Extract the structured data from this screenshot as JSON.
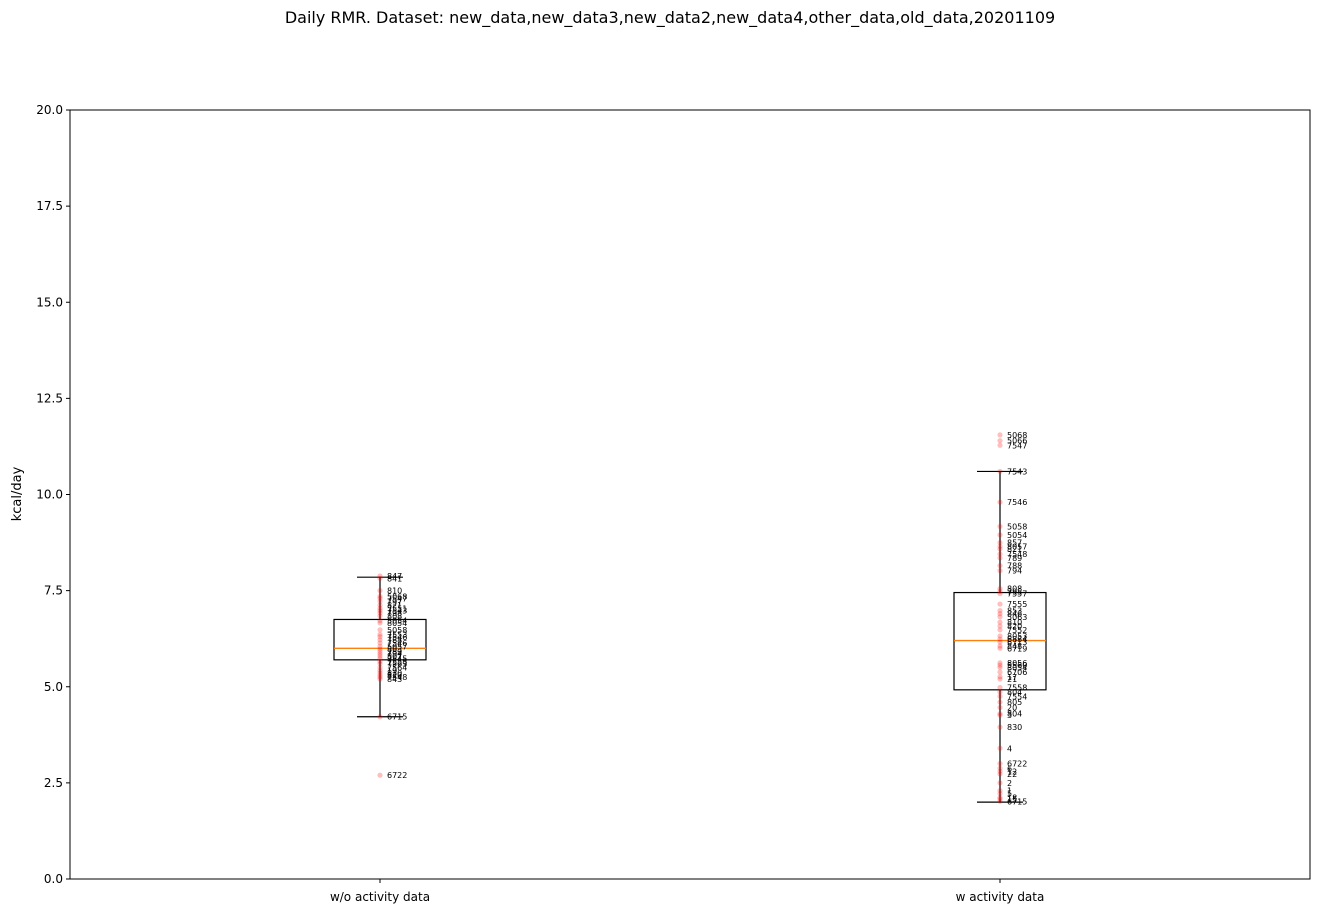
{
  "chart_data": {
    "type": "box",
    "title": "Daily RMR. Dataset: new_data,new_data3,new_data2,new_data4,other_data,old_data,20201109",
    "xlabel": "",
    "ylabel": "kcal/day",
    "ylim": [
      0,
      20
    ],
    "yticks": [
      0.0,
      2.5,
      5.0,
      7.5,
      10.0,
      12.5,
      15.0,
      17.5,
      20.0
    ],
    "ytick_labels": [
      "0.0",
      "2.5",
      "5.0",
      "7.5",
      "10.0",
      "12.5",
      "15.0",
      "17.5",
      "20.0"
    ],
    "categories": [
      "w/o activity data",
      "w activity data"
    ],
    "grid": false,
    "colors": {
      "box": "#000000",
      "median": "#ff7f0e",
      "points": "#ff0000"
    },
    "boxes": [
      {
        "category": "w/o activity data",
        "whisker_low": 4.22,
        "q1": 5.7,
        "median": 6.0,
        "q3": 6.75,
        "whisker_high": 7.85,
        "points": [
          {
            "y": 7.88,
            "label": "847"
          },
          {
            "y": 7.82,
            "label": "841"
          },
          {
            "y": 7.5,
            "label": "810"
          },
          {
            "y": 7.35,
            "label": "5068"
          },
          {
            "y": 7.3,
            "label": "7547"
          },
          {
            "y": 7.22,
            "label": "797"
          },
          {
            "y": 7.12,
            "label": "821"
          },
          {
            "y": 7.04,
            "label": "7551"
          },
          {
            "y": 6.98,
            "label": "7543"
          },
          {
            "y": 6.92,
            "label": "798"
          },
          {
            "y": 6.84,
            "label": "808"
          },
          {
            "y": 6.72,
            "label": "5054"
          },
          {
            "y": 6.66,
            "label": "8054"
          },
          {
            "y": 6.48,
            "label": "5058"
          },
          {
            "y": 6.36,
            "label": "7553"
          },
          {
            "y": 6.3,
            "label": "7546"
          },
          {
            "y": 6.22,
            "label": "788"
          },
          {
            "y": 6.14,
            "label": "7546"
          },
          {
            "y": 6.05,
            "label": "5057"
          },
          {
            "y": 5.98,
            "label": "803"
          },
          {
            "y": 5.92,
            "label": "789"
          },
          {
            "y": 5.86,
            "label": "794"
          },
          {
            "y": 5.8,
            "label": "807"
          },
          {
            "y": 5.74,
            "label": "7545"
          },
          {
            "y": 5.66,
            "label": "7558"
          },
          {
            "y": 5.6,
            "label": "7563"
          },
          {
            "y": 5.5,
            "label": "7564"
          },
          {
            "y": 5.42,
            "label": "19"
          },
          {
            "y": 5.36,
            "label": "830"
          },
          {
            "y": 5.3,
            "label": "820"
          },
          {
            "y": 5.25,
            "label": "7548"
          },
          {
            "y": 5.2,
            "label": "843"
          },
          {
            "y": 4.22,
            "label": "6715"
          },
          {
            "y": 2.7,
            "label": "6722"
          }
        ]
      },
      {
        "category": "w activity data",
        "whisker_low": 2.0,
        "q1": 4.92,
        "median": 6.2,
        "q3": 7.45,
        "whisker_high": 10.6,
        "points": [
          {
            "y": 11.55,
            "label": "5068"
          },
          {
            "y": 11.4,
            "label": "5066"
          },
          {
            "y": 11.28,
            "label": "7547"
          },
          {
            "y": 10.6,
            "label": "7543"
          },
          {
            "y": 9.8,
            "label": "7546"
          },
          {
            "y": 9.17,
            "label": "5058"
          },
          {
            "y": 8.95,
            "label": "5054"
          },
          {
            "y": 8.75,
            "label": "857"
          },
          {
            "y": 8.65,
            "label": "8057"
          },
          {
            "y": 8.58,
            "label": "821"
          },
          {
            "y": 8.45,
            "label": "7548"
          },
          {
            "y": 8.35,
            "label": "789"
          },
          {
            "y": 8.15,
            "label": "788"
          },
          {
            "y": 8.02,
            "label": "794"
          },
          {
            "y": 7.55,
            "label": "808"
          },
          {
            "y": 7.48,
            "label": "795"
          },
          {
            "y": 7.42,
            "label": "7557"
          },
          {
            "y": 7.15,
            "label": "7555"
          },
          {
            "y": 6.98,
            "label": "853"
          },
          {
            "y": 6.9,
            "label": "846"
          },
          {
            "y": 6.82,
            "label": "5063"
          },
          {
            "y": 6.68,
            "label": "810"
          },
          {
            "y": 6.58,
            "label": "820"
          },
          {
            "y": 6.48,
            "label": "7552"
          },
          {
            "y": 6.32,
            "label": "8053"
          },
          {
            "y": 6.24,
            "label": "6884"
          },
          {
            "y": 6.16,
            "label": "6713"
          },
          {
            "y": 6.06,
            "label": "848"
          },
          {
            "y": 6.0,
            "label": "6719"
          },
          {
            "y": 5.62,
            "label": "8056"
          },
          {
            "y": 5.56,
            "label": "5560"
          },
          {
            "y": 5.5,
            "label": "8054"
          },
          {
            "y": 5.38,
            "label": "6706"
          },
          {
            "y": 5.26,
            "label": "17"
          },
          {
            "y": 5.2,
            "label": "21"
          },
          {
            "y": 4.98,
            "label": "7558"
          },
          {
            "y": 4.86,
            "label": "804"
          },
          {
            "y": 4.75,
            "label": "7554"
          },
          {
            "y": 4.6,
            "label": "805"
          },
          {
            "y": 4.46,
            "label": "20"
          },
          {
            "y": 4.3,
            "label": "804"
          },
          {
            "y": 4.26,
            "label": "3"
          },
          {
            "y": 3.95,
            "label": "830"
          },
          {
            "y": 3.4,
            "label": "4"
          },
          {
            "y": 3.0,
            "label": "6722"
          },
          {
            "y": 2.88,
            "label": "6"
          },
          {
            "y": 2.8,
            "label": "12"
          },
          {
            "y": 2.73,
            "label": "22"
          },
          {
            "y": 2.5,
            "label": "2"
          },
          {
            "y": 2.3,
            "label": "1"
          },
          {
            "y": 2.22,
            "label": "5"
          },
          {
            "y": 2.12,
            "label": "18"
          },
          {
            "y": 2.08,
            "label": "15"
          },
          {
            "y": 2.02,
            "label": "6715"
          }
        ]
      }
    ]
  }
}
